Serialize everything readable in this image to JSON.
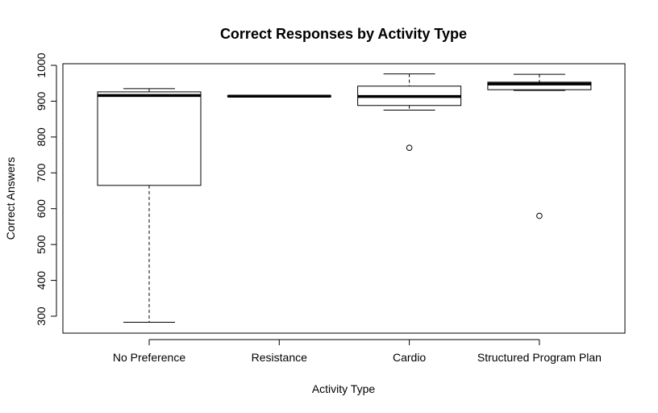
{
  "chart_data": {
    "type": "box",
    "title": "Correct Responses by Activity Type",
    "xlabel": "Activity Type",
    "ylabel": "Correct Answers",
    "ylim": [
      255,
      1000
    ],
    "yticks": [
      300,
      400,
      500,
      600,
      700,
      800,
      900,
      1000
    ],
    "categories": [
      "No Preference",
      "Resistance",
      "Cardio",
      "Structured Program Plan"
    ],
    "boxes": [
      {
        "category": "No Preference",
        "whisker_low": 283,
        "q1": 665,
        "median": 916,
        "q3": 926,
        "whisker_high": 935,
        "outliers": []
      },
      {
        "category": "Resistance",
        "whisker_low": 913,
        "q1": 913,
        "median": 914,
        "q3": 915,
        "whisker_high": 915,
        "outliers": []
      },
      {
        "category": "Cardio",
        "whisker_low": 875,
        "q1": 888,
        "median": 913,
        "q3": 942,
        "whisker_high": 976,
        "outliers": [
          770
        ]
      },
      {
        "category": "Structured Program Plan",
        "whisker_low": 930,
        "q1": 932,
        "median": 948,
        "q3": 953,
        "whisker_high": 975,
        "outliers": [
          580
        ]
      }
    ]
  }
}
